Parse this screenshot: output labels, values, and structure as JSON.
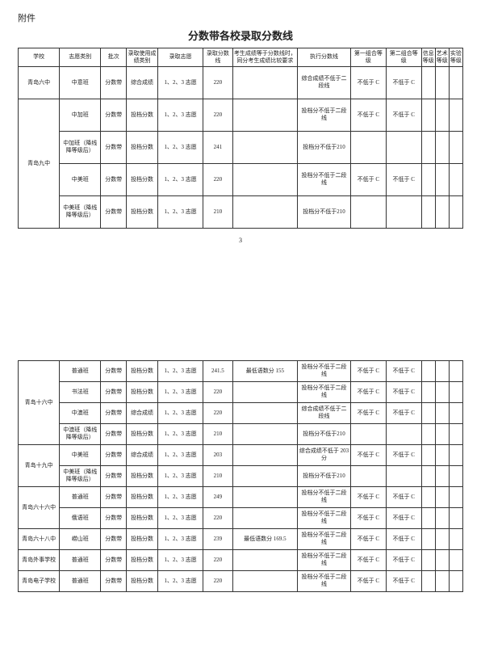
{
  "attach_label": "附件",
  "title": "分数带各校录取分数线",
  "page_num": "3",
  "headers": {
    "school": "学校",
    "wish_type": "志愿类别",
    "batch": "批次",
    "score_kind": "录取使用成绩类别",
    "wish": "录取志愿",
    "line": "录取分数线",
    "req": "考生成绩等于分数线时，同分考生成绩比较要求",
    "exec": "执行分数线",
    "g1": "第一组合等级",
    "g2": "第二组合等级",
    "n1": "信息等级",
    "n2": "艺术等级",
    "n3": "实验等级"
  },
  "table1": [
    {
      "school": "青岛六中",
      "rows": [
        {
          "type": "中意班",
          "batch": "分数带",
          "score": "综合成绩",
          "wish": "1、2、3 志愿",
          "line": "220",
          "req": "",
          "exec": "综合成绩不低于二段线",
          "g1": "不低于 C",
          "g2": "不低于 C"
        }
      ]
    },
    {
      "school": "青岛九中",
      "rows": [
        {
          "type": "中加班",
          "batch": "分数带",
          "score": "投档分数",
          "wish": "1、2、3 志愿",
          "line": "220",
          "req": "",
          "exec": "投档分不低于二段线",
          "g1": "不低于 C",
          "g2": "不低于 C"
        },
        {
          "type": "中加班（降线降等级后）",
          "batch": "分数带",
          "score": "投档分数",
          "wish": "1、2、3 志愿",
          "line": "241",
          "req": "",
          "exec": "投档分不低于210",
          "g1": "",
          "g2": ""
        },
        {
          "type": "中美班",
          "batch": "分数带",
          "score": "投档分数",
          "wish": "1、2、3 志愿",
          "line": "220",
          "req": "",
          "exec": "投档分不低于二段线",
          "g1": "不低于 C",
          "g2": "不低于 C"
        },
        {
          "type": "中美班（降线降等级后）",
          "batch": "分数带",
          "score": "投档分数",
          "wish": "1、2、3 志愿",
          "line": "210",
          "req": "",
          "exec": "投档分不低于210",
          "g1": "",
          "g2": ""
        }
      ]
    }
  ],
  "table2": [
    {
      "school": "青岛十六中",
      "rows": [
        {
          "type": "普通班",
          "batch": "分数带",
          "score": "投档分数",
          "wish": "1、2、3 志愿",
          "line": "241.5",
          "req": "最低语数分 155",
          "exec": "投档分不低于二段线",
          "g1": "不低于 C",
          "g2": "不低于 C"
        },
        {
          "type": "书法班",
          "batch": "分数带",
          "score": "投档分数",
          "wish": "1、2、3 志愿",
          "line": "220",
          "req": "",
          "exec": "投档分不低于二段线",
          "g1": "不低于 C",
          "g2": "不低于 C"
        },
        {
          "type": "中澳班",
          "batch": "分数带",
          "score": "综合成绩",
          "wish": "1、2、3 志愿",
          "line": "220",
          "req": "",
          "exec": "综合成绩不低于二段线",
          "g1": "不低于 C",
          "g2": "不低于 C"
        },
        {
          "type": "中澳班（降线降等级后）",
          "batch": "分数带",
          "score": "投档分数",
          "wish": "1、2、3 志愿",
          "line": "210",
          "req": "",
          "exec": "投档分不低于210",
          "g1": "",
          "g2": ""
        }
      ]
    },
    {
      "school": "青岛十九中",
      "rows": [
        {
          "type": "中美班",
          "batch": "分数带",
          "score": "综合成绩",
          "wish": "1、2、3 志愿",
          "line": "203",
          "req": "",
          "exec": "综合成绩不低于 203 分",
          "g1": "不低于 C",
          "g2": "不低于 C"
        },
        {
          "type": "中美班（降线降等级后）",
          "batch": "分数带",
          "score": "投档分数",
          "wish": "1、2、3 志愿",
          "line": "210",
          "req": "",
          "exec": "投档分不低于210",
          "g1": "",
          "g2": ""
        }
      ]
    },
    {
      "school": "青岛六十六中",
      "rows": [
        {
          "type": "普通班",
          "batch": "分数带",
          "score": "投档分数",
          "wish": "1、2、3 志愿",
          "line": "249",
          "req": "",
          "exec": "投档分不低于二段线",
          "g1": "不低于 C",
          "g2": "不低于 C"
        },
        {
          "type": "俄语班",
          "batch": "分数带",
          "score": "投档分数",
          "wish": "1、2、3 志愿",
          "line": "220",
          "req": "",
          "exec": "投档分不低于二段线",
          "g1": "不低于 C",
          "g2": "不低于 C"
        }
      ]
    },
    {
      "school": "青岛六十八中",
      "rows": [
        {
          "type": "崂山班",
          "batch": "分数带",
          "score": "投档分数",
          "wish": "1、2、3 志愿",
          "line": "239",
          "req": "最低语数分 169.5",
          "exec": "投档分不低于二段线",
          "g1": "不低于 C",
          "g2": "不低于 C"
        }
      ]
    },
    {
      "school": "青岛外事学校",
      "rows": [
        {
          "type": "普通班",
          "batch": "分数带",
          "score": "投档分数",
          "wish": "1、2、3 志愿",
          "line": "220",
          "req": "",
          "exec": "投档分不低于二段线",
          "g1": "不低于 C",
          "g2": "不低于 C"
        }
      ]
    },
    {
      "school": "青岛电子学校",
      "rows": [
        {
          "type": "普通班",
          "batch": "分数带",
          "score": "投档分数",
          "wish": "1、2、3 志愿",
          "line": "220",
          "req": "",
          "exec": "投档分不低于二段线",
          "g1": "不低于 C",
          "g2": "不低于 C"
        }
      ]
    }
  ]
}
